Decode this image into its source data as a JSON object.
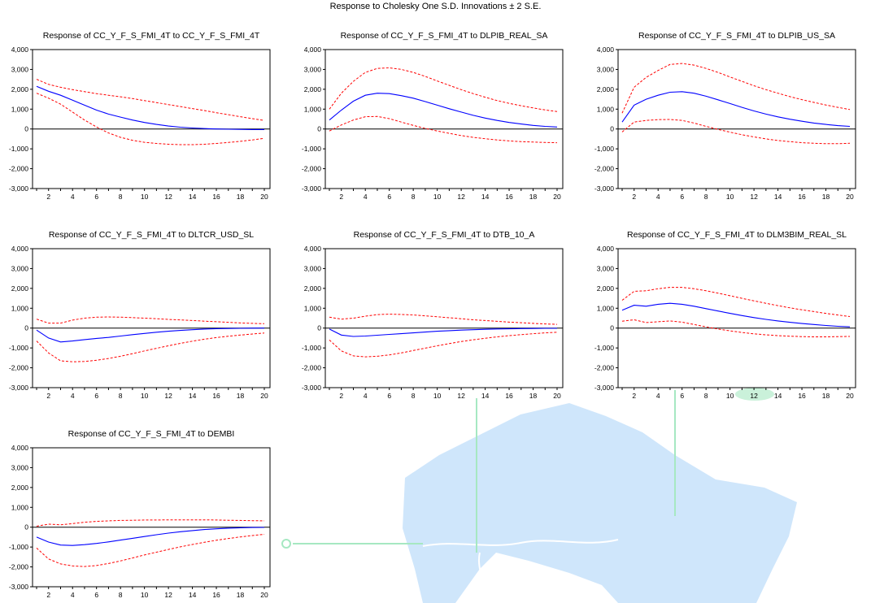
{
  "title": "Response to Cholesky One S.D. Innovations ± 2 S.E.",
  "colors": {
    "response": "#0000ff",
    "bands": "#ff0000",
    "zero_line": "#000000",
    "background_map": "#cfe6fb",
    "background_map_accent": "#a6e8c2"
  },
  "chart_data": [
    {
      "type": "line",
      "title": "Response of CC_Y_F_S_FMI_4T to CC_Y_F_S_FMI_4T",
      "x": [
        1,
        2,
        3,
        4,
        5,
        6,
        7,
        8,
        9,
        10,
        11,
        12,
        13,
        14,
        15,
        16,
        17,
        18,
        19,
        20
      ],
      "ylim": [
        -3000,
        4000
      ],
      "yticks": [
        "4,000",
        "3,000",
        "2,000",
        "1,000",
        "0",
        "-1,000",
        "-2,000",
        "-3,000"
      ],
      "xticks": [
        "2",
        "4",
        "6",
        "8",
        "10",
        "12",
        "14",
        "16",
        "18",
        "20"
      ],
      "series": [
        {
          "role": "response",
          "values": [
            2150,
            1900,
            1700,
            1450,
            1200,
            950,
            750,
            600,
            450,
            330,
            230,
            150,
            90,
            50,
            20,
            0,
            -10,
            -20,
            -30,
            -30
          ]
        },
        {
          "role": "upper",
          "values": [
            2500,
            2250,
            2100,
            1980,
            1880,
            1780,
            1700,
            1620,
            1530,
            1430,
            1330,
            1230,
            1130,
            1030,
            930,
            820,
            720,
            620,
            520,
            430
          ]
        },
        {
          "role": "lower",
          "values": [
            1800,
            1550,
            1250,
            850,
            450,
            100,
            -200,
            -420,
            -570,
            -670,
            -730,
            -770,
            -790,
            -790,
            -770,
            -730,
            -680,
            -620,
            -550,
            -470
          ]
        }
      ]
    },
    {
      "type": "line",
      "title": "Response of CC_Y_F_S_FMI_4T to DLPIB_REAL_SA",
      "x": [
        1,
        2,
        3,
        4,
        5,
        6,
        7,
        8,
        9,
        10,
        11,
        12,
        13,
        14,
        15,
        16,
        17,
        18,
        19,
        20
      ],
      "ylim": [
        -3000,
        4000
      ],
      "yticks": [
        "4,000",
        "3,000",
        "2,000",
        "1,000",
        "0",
        "-1,000",
        "-2,000",
        "-3,000"
      ],
      "xticks": [
        "2",
        "4",
        "6",
        "8",
        "10",
        "12",
        "14",
        "16",
        "18",
        "20"
      ],
      "series": [
        {
          "role": "response",
          "values": [
            450,
            950,
            1400,
            1700,
            1800,
            1780,
            1680,
            1550,
            1380,
            1200,
            1020,
            850,
            690,
            550,
            430,
            330,
            250,
            180,
            130,
            100
          ]
        },
        {
          "role": "upper",
          "values": [
            1000,
            1800,
            2400,
            2850,
            3050,
            3080,
            3000,
            2850,
            2650,
            2420,
            2200,
            1980,
            1780,
            1600,
            1430,
            1290,
            1170,
            1060,
            960,
            880
          ]
        },
        {
          "role": "lower",
          "values": [
            -100,
            200,
            450,
            620,
            630,
            520,
            350,
            180,
            30,
            -100,
            -220,
            -330,
            -420,
            -490,
            -550,
            -600,
            -640,
            -660,
            -680,
            -690
          ]
        }
      ]
    },
    {
      "type": "line",
      "title": "Response of CC_Y_F_S_FMI_4T to DLPIB_US_SA",
      "x": [
        1,
        2,
        3,
        4,
        5,
        6,
        7,
        8,
        9,
        10,
        11,
        12,
        13,
        14,
        15,
        16,
        17,
        18,
        19,
        20
      ],
      "ylim": [
        -3000,
        4000
      ],
      "yticks": [
        "4,000",
        "3,000",
        "2,000",
        "1,000",
        "0",
        "-1,000",
        "-2,000",
        "-3,000"
      ],
      "xticks": [
        "2",
        "4",
        "6",
        "8",
        "10",
        "12",
        "14",
        "16",
        "18",
        "20"
      ],
      "series": [
        {
          "role": "response",
          "values": [
            350,
            1200,
            1500,
            1700,
            1850,
            1880,
            1800,
            1650,
            1470,
            1280,
            1090,
            910,
            750,
            610,
            490,
            390,
            300,
            230,
            170,
            130
          ]
        },
        {
          "role": "upper",
          "values": [
            800,
            2100,
            2600,
            2950,
            3250,
            3300,
            3220,
            3050,
            2850,
            2620,
            2400,
            2180,
            1980,
            1800,
            1630,
            1480,
            1340,
            1210,
            1090,
            980
          ]
        },
        {
          "role": "lower",
          "values": [
            -150,
            350,
            430,
            470,
            480,
            430,
            300,
            130,
            -20,
            -160,
            -290,
            -400,
            -500,
            -580,
            -640,
            -690,
            -720,
            -740,
            -740,
            -720
          ]
        }
      ]
    },
    {
      "type": "line",
      "title": "Response of CC_Y_F_S_FMI_4T to DLTCR_USD_SL",
      "x": [
        1,
        2,
        3,
        4,
        5,
        6,
        7,
        8,
        9,
        10,
        11,
        12,
        13,
        14,
        15,
        16,
        17,
        18,
        19,
        20
      ],
      "ylim": [
        -3000,
        4000
      ],
      "yticks": [
        "4,000",
        "3,000",
        "2,000",
        "1,000",
        "0",
        "-1,000",
        "-2,000",
        "-3,000"
      ],
      "xticks": [
        "2",
        "4",
        "6",
        "8",
        "10",
        "12",
        "14",
        "16",
        "18",
        "20"
      ],
      "series": [
        {
          "role": "response",
          "values": [
            -100,
            -500,
            -700,
            -650,
            -580,
            -520,
            -470,
            -400,
            -330,
            -270,
            -210,
            -160,
            -120,
            -80,
            -50,
            -30,
            -20,
            -10,
            -5,
            0
          ]
        },
        {
          "role": "upper",
          "values": [
            450,
            250,
            250,
            400,
            500,
            550,
            560,
            550,
            530,
            500,
            470,
            440,
            410,
            380,
            350,
            320,
            290,
            260,
            240,
            220
          ]
        },
        {
          "role": "lower",
          "values": [
            -650,
            -1250,
            -1650,
            -1700,
            -1680,
            -1620,
            -1530,
            -1420,
            -1290,
            -1150,
            -1020,
            -890,
            -770,
            -660,
            -560,
            -480,
            -410,
            -350,
            -300,
            -250
          ]
        }
      ]
    },
    {
      "type": "line",
      "title": "Response of CC_Y_F_S_FMI_4T to DTB_10_A",
      "x": [
        1,
        2,
        3,
        4,
        5,
        6,
        7,
        8,
        9,
        10,
        11,
        12,
        13,
        14,
        15,
        16,
        17,
        18,
        19,
        20
      ],
      "ylim": [
        -3000,
        4000
      ],
      "yticks": [
        "4,000",
        "3,000",
        "2,000",
        "1,000",
        "0",
        "-1,000",
        "-2,000",
        "-3,000"
      ],
      "xticks": [
        "2",
        "4",
        "6",
        "8",
        "10",
        "12",
        "14",
        "16",
        "18",
        "20"
      ],
      "series": [
        {
          "role": "response",
          "values": [
            -50,
            -350,
            -420,
            -400,
            -360,
            -320,
            -280,
            -240,
            -200,
            -160,
            -130,
            -100,
            -80,
            -60,
            -45,
            -35,
            -25,
            -18,
            -12,
            -10
          ]
        },
        {
          "role": "upper",
          "values": [
            550,
            450,
            500,
            600,
            680,
            700,
            690,
            660,
            620,
            570,
            520,
            470,
            420,
            380,
            340,
            300,
            270,
            240,
            210,
            190
          ]
        },
        {
          "role": "lower",
          "values": [
            -600,
            -1150,
            -1400,
            -1450,
            -1420,
            -1350,
            -1250,
            -1130,
            -1010,
            -890,
            -780,
            -680,
            -590,
            -510,
            -440,
            -380,
            -330,
            -280,
            -240,
            -210
          ]
        }
      ]
    },
    {
      "type": "line",
      "title": "Response of CC_Y_F_S_FMI_4T to DLM3BIM_REAL_SL",
      "x": [
        1,
        2,
        3,
        4,
        5,
        6,
        7,
        8,
        9,
        10,
        11,
        12,
        13,
        14,
        15,
        16,
        17,
        18,
        19,
        20
      ],
      "ylim": [
        -3000,
        4000
      ],
      "yticks": [
        "4,000",
        "3,000",
        "2,000",
        "1,000",
        "0",
        "-1,000",
        "-2,000",
        "-3,000"
      ],
      "xticks": [
        "2",
        "4",
        "6",
        "8",
        "10",
        "12",
        "14",
        "16",
        "18",
        "20"
      ],
      "series": [
        {
          "role": "response",
          "values": [
            900,
            1150,
            1100,
            1200,
            1250,
            1200,
            1100,
            980,
            860,
            740,
            630,
            530,
            440,
            360,
            290,
            230,
            180,
            130,
            90,
            60
          ]
        },
        {
          "role": "upper",
          "values": [
            1400,
            1850,
            1880,
            1980,
            2050,
            2050,
            1980,
            1880,
            1760,
            1630,
            1500,
            1370,
            1250,
            1130,
            1020,
            920,
            830,
            740,
            660,
            580
          ]
        },
        {
          "role": "lower",
          "values": [
            350,
            420,
            280,
            320,
            360,
            300,
            180,
            60,
            -50,
            -140,
            -220,
            -290,
            -340,
            -380,
            -410,
            -430,
            -440,
            -440,
            -430,
            -420
          ]
        }
      ]
    },
    {
      "type": "line",
      "title": "Response of CC_Y_F_S_FMI_4T to DEMBI",
      "x": [
        1,
        2,
        3,
        4,
        5,
        6,
        7,
        8,
        9,
        10,
        11,
        12,
        13,
        14,
        15,
        16,
        17,
        18,
        19,
        20
      ],
      "ylim": [
        -3000,
        4000
      ],
      "yticks": [
        "4,000",
        "3,000",
        "2,000",
        "1,000",
        "0",
        "-1,000",
        "-2,000",
        "-3,000"
      ],
      "xticks": [
        "2",
        "4",
        "6",
        "8",
        "10",
        "12",
        "14",
        "16",
        "18",
        "20"
      ],
      "series": [
        {
          "role": "response",
          "values": [
            -500,
            -750,
            -900,
            -920,
            -880,
            -820,
            -740,
            -650,
            -560,
            -470,
            -380,
            -300,
            -230,
            -170,
            -120,
            -80,
            -50,
            -30,
            -15,
            -10
          ]
        },
        {
          "role": "upper",
          "values": [
            50,
            150,
            120,
            180,
            250,
            290,
            320,
            340,
            350,
            360,
            360,
            370,
            370,
            370,
            370,
            360,
            350,
            340,
            330,
            320
          ]
        },
        {
          "role": "lower",
          "values": [
            -1050,
            -1600,
            -1850,
            -1950,
            -1980,
            -1930,
            -1830,
            -1700,
            -1550,
            -1400,
            -1260,
            -1120,
            -990,
            -870,
            -760,
            -660,
            -570,
            -490,
            -420,
            -360
          ]
        }
      ]
    }
  ]
}
